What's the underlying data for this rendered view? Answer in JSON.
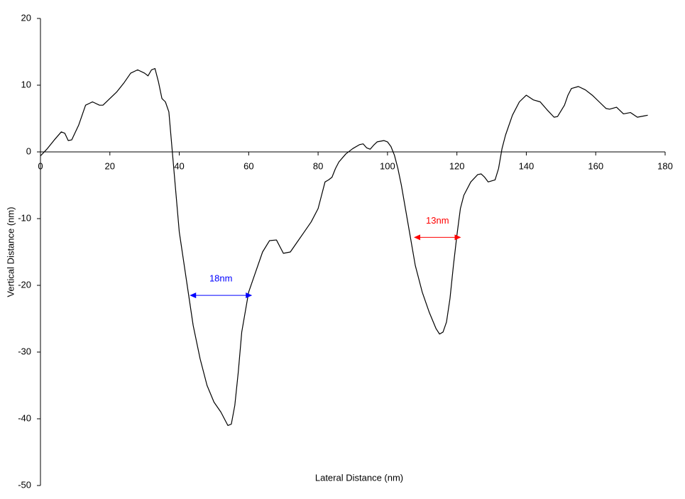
{
  "chart_data": {
    "type": "line",
    "xlabel": "Lateral Distance (nm)",
    "ylabel": "Vertical Distance (nm)",
    "color": "#000000",
    "x": [
      0,
      2,
      4,
      6,
      7,
      8,
      9,
      11,
      13,
      15,
      17,
      18,
      20,
      22,
      24,
      26,
      28,
      30,
      31,
      32,
      33,
      34,
      35,
      36,
      37,
      38,
      39,
      40,
      42,
      44,
      46,
      48,
      50,
      52,
      53,
      54,
      55,
      56,
      57,
      58,
      60,
      62,
      64,
      66,
      68,
      69,
      70,
      72,
      74,
      76,
      78,
      80,
      81,
      82,
      83,
      84,
      85,
      86,
      88,
      90,
      92,
      93,
      94,
      95,
      96,
      97,
      99,
      100,
      101,
      102,
      103,
      104,
      106,
      108,
      110,
      112,
      114,
      115,
      116,
      117,
      118,
      119,
      120,
      121,
      122,
      124,
      126,
      127,
      128,
      129,
      131,
      132,
      133,
      134,
      136,
      138,
      140,
      142,
      144,
      146,
      148,
      149,
      151,
      152,
      153,
      155,
      157,
      159,
      161,
      163,
      164,
      166,
      168,
      170,
      172,
      174,
      175
    ],
    "values": [
      -0.6,
      0.5,
      1.8,
      3.0,
      2.8,
      1.7,
      1.8,
      4,
      7,
      7.5,
      7,
      7,
      8,
      9,
      10.3,
      11.8,
      12.3,
      11.8,
      11.4,
      12.3,
      12.5,
      10.5,
      8,
      7.5,
      6,
      0,
      -6,
      -12,
      -19,
      -26,
      -31,
      -35,
      -37.5,
      -39,
      -40,
      -41,
      -40.8,
      -38,
      -33,
      -27,
      -21,
      -18,
      -15,
      -13.3,
      -13.2,
      -14.2,
      -15.2,
      -15,
      -13.5,
      -12,
      -10.5,
      -8.5,
      -6.5,
      -4.5,
      -4.2,
      -3.8,
      -2.5,
      -1.5,
      -0.3,
      0.5,
      1.1,
      1.2,
      0.6,
      0.4,
      1,
      1.5,
      1.7,
      1.5,
      0.8,
      -0.5,
      -2.5,
      -5,
      -11,
      -17,
      -21,
      -24,
      -26.5,
      -27.3,
      -27,
      -25.5,
      -22,
      -17,
      -12.5,
      -8.5,
      -6.5,
      -4.5,
      -3.4,
      -3.3,
      -3.8,
      -4.5,
      -4.2,
      -2.5,
      0.5,
      2.5,
      5.5,
      7.5,
      8.5,
      7.8,
      7.5,
      6.3,
      5.2,
      5.3,
      7,
      8.5,
      9.5,
      9.8,
      9.3,
      8.5,
      7.5,
      6.5,
      6.4,
      6.7,
      5.7,
      5.9,
      5.2,
      5.4,
      5.5
    ],
    "xlim": [
      0,
      180
    ],
    "xticks": [
      0,
      20,
      40,
      60,
      80,
      100,
      120,
      140,
      160,
      180
    ],
    "ylim": [
      -50,
      20
    ],
    "yticks": [
      -50,
      -40,
      -30,
      -20,
      -10,
      0,
      10,
      20
    ],
    "annotations": [
      {
        "text": "18nm",
        "color": "#0000ff",
        "x": [
          43,
          61
        ],
        "y": -21.5
      },
      {
        "text": "13nm",
        "color": "#ff0000",
        "x": [
          107.6,
          121.2
        ],
        "y": -12.8
      }
    ]
  }
}
